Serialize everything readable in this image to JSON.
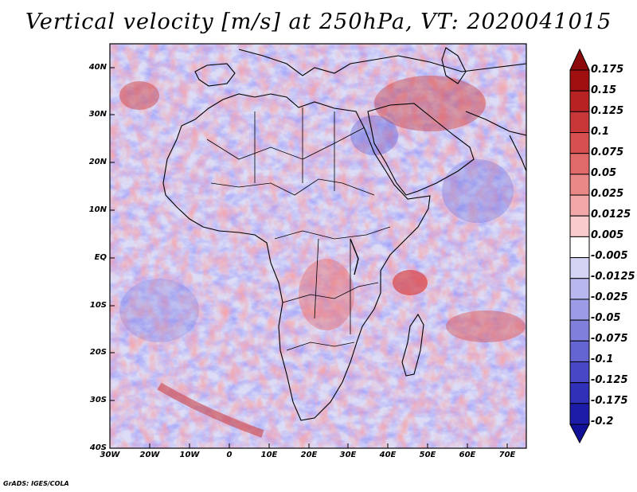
{
  "title": "Vertical velocity [m/s] at 250hPa, VT: 2020041015",
  "footer": "GrADS: IGES/COLA",
  "map": {
    "lat_labels": [
      "40N",
      "30N",
      "20N",
      "10N",
      "EQ",
      "10S",
      "20S",
      "30S",
      "40S"
    ],
    "lon_labels": [
      "30W",
      "20W",
      "10W",
      "0",
      "10E",
      "20E",
      "30E",
      "40E",
      "50E",
      "60E",
      "70E"
    ]
  },
  "colorbar": {
    "levels": [
      "0.175",
      "0.15",
      "0.125",
      "0.1",
      "0.075",
      "0.05",
      "0.025",
      "0.0125",
      "0.005",
      "-0.005",
      "-0.0125",
      "-0.025",
      "-0.05",
      "-0.075",
      "-0.1",
      "-0.125",
      "-0.175",
      "-0.2"
    ],
    "colors": [
      "#a01010",
      "#b82222",
      "#c83838",
      "#d65050",
      "#e06a6a",
      "#ea8888",
      "#f2a8a8",
      "#f8cccc",
      "#ffffff",
      "#d4d4f4",
      "#b8b8ee",
      "#9c9ce6",
      "#8080dc",
      "#6464d2",
      "#4848c6",
      "#3030b8",
      "#1c1ca8"
    ],
    "top_color": "#8c0a0a",
    "bottom_color": "#101098"
  }
}
